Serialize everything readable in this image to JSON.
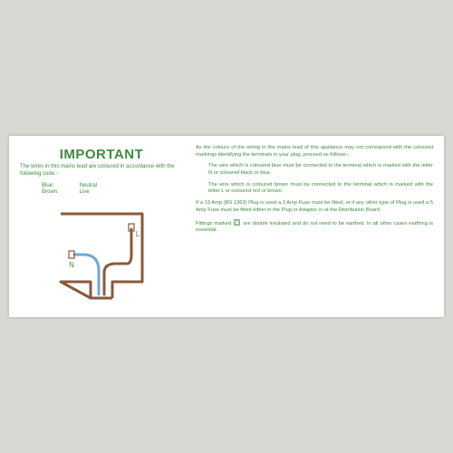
{
  "colors": {
    "green": "#3e8a3e",
    "brown": "#8a5a3b",
    "blue": "#6fa8d6",
    "text": "#3e8a3e",
    "page_bg": "#d8d9d3",
    "card_bg": "#ffffff"
  },
  "left": {
    "heading": "IMPORTANT",
    "subheading": "The wires in this mains lead are coloured in accordance with the following code:-",
    "legend": [
      {
        "color_name": "Blue:",
        "role": "Neutral"
      },
      {
        "color_name": "Brown:",
        "role": "Live"
      }
    ]
  },
  "diagram": {
    "width": 120,
    "height": 110,
    "plug_outline_color": "#8a5a3b",
    "plug_outline_width": 3,
    "neutral_wire_color": "#6fa8d6",
    "live_wire_color": "#8a5a3b",
    "wire_width": 3,
    "label_N": "N",
    "label_L": "L",
    "label_color": "#3e8a3e",
    "label_fontsize": 8
  },
  "right": {
    "p1": "As the colours of the wiring in the mains lead of this appliance may not correspond with the coloured markings identifying the terminals in your plug, proceed as follows:-",
    "p2": "The wire which is coloured blue must be connected to the terminal which is marked with the letter N or coloured black or blue.",
    "p3": "The wire which is coloured brown must be connected to the terminal which is marked with the letter L or coloured red or brown.",
    "p4": "If a 13 Amp (BS 1363) Plug is used a 3 Amp Fuse must be fitted, or if any other type of Plug is used a 5 Amp Fuse must be fitted either in the Plug or Adaptor or at the Distribution Board.",
    "p5a": "Fittings marked",
    "p5b": "are double insulated and do not need to be earthed. In all other cases earthing is essential."
  }
}
